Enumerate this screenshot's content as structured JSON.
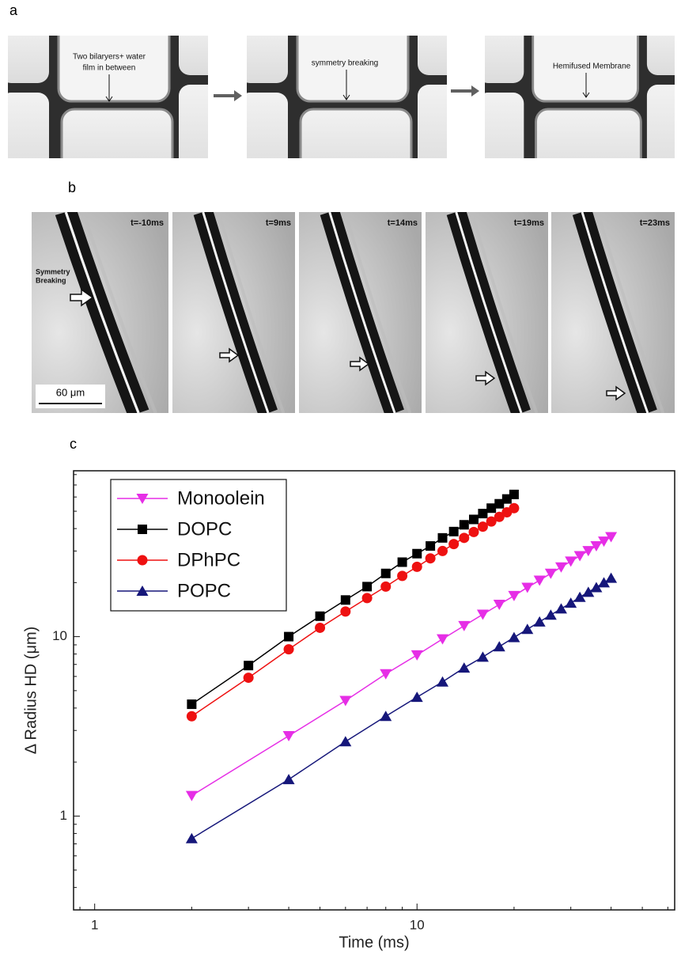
{
  "panels": {
    "a": {
      "label": "a",
      "annotations": [
        {
          "lines": [
            "Two bilaryers+ water",
            "film in between"
          ]
        },
        {
          "lines": [
            "symmetry breaking"
          ]
        },
        {
          "lines": [
            "Hemifused Membrane"
          ]
        }
      ]
    },
    "b": {
      "label": "b",
      "times": [
        "t=-10ms",
        "t=9ms",
        "t=14ms",
        "t=19ms",
        "t=23ms"
      ],
      "annotation": [
        "Symmetry",
        "Breaking"
      ],
      "scale_bar": "60 μm"
    },
    "c": {
      "label": "c"
    }
  },
  "chart_data": {
    "type": "line",
    "x_label": "Time (ms)",
    "y_label": "Δ Radius HD (μm)",
    "xlog": true,
    "ylog": true,
    "xlim": [
      0.86,
      63
    ],
    "ylim": [
      0.3,
      84
    ],
    "xticks": [
      1,
      10
    ],
    "yticks": [
      1,
      10
    ],
    "legend": "upper left",
    "series": [
      {
        "name": "Monoolein",
        "color": "#e62ee6",
        "marker": "triangle-down",
        "x": [
          2,
          4,
          6,
          8,
          10,
          12,
          14,
          16,
          18,
          20,
          22,
          24,
          26,
          28,
          30,
          32,
          34,
          36,
          38,
          40
        ],
        "values": [
          1.3,
          2.8,
          4.4,
          6.2,
          7.9,
          9.7,
          11.5,
          13.3,
          15.1,
          16.9,
          18.8,
          20.6,
          22.5,
          24.4,
          26.3,
          28.2,
          30.1,
          32,
          34,
          36
        ]
      },
      {
        "name": "DOPC",
        "color": "#000000",
        "marker": "square",
        "x": [
          2,
          3,
          4,
          5,
          6,
          7,
          8,
          9,
          10,
          11,
          12,
          13,
          14,
          15,
          16,
          17,
          18,
          19,
          20
        ],
        "values": [
          4.2,
          6.9,
          10,
          13,
          16,
          19,
          22.5,
          26,
          29,
          32,
          35.5,
          38.5,
          42,
          45,
          48.5,
          52,
          55,
          58.5,
          62
        ]
      },
      {
        "name": "DPhPC",
        "color": "#ee1111",
        "marker": "circle",
        "x": [
          2,
          3,
          4,
          5,
          6,
          7,
          8,
          9,
          10,
          11,
          12,
          13,
          14,
          15,
          16,
          17,
          18,
          19,
          20
        ],
        "values": [
          3.6,
          5.9,
          8.5,
          11.2,
          13.8,
          16.4,
          19,
          21.8,
          24.5,
          27.3,
          30,
          32.8,
          35.5,
          38.3,
          41,
          43.8,
          46.5,
          49.3,
          52
        ]
      },
      {
        "name": "POPC",
        "color": "#16177a",
        "marker": "triangle-up",
        "x": [
          2,
          4,
          6,
          8,
          10,
          12,
          14,
          16,
          18,
          20,
          22,
          24,
          26,
          28,
          30,
          32,
          34,
          36,
          38,
          40
        ],
        "values": [
          0.75,
          1.6,
          2.6,
          3.6,
          4.6,
          5.6,
          6.7,
          7.7,
          8.8,
          9.9,
          11,
          12.1,
          13.2,
          14.3,
          15.4,
          16.6,
          17.7,
          18.8,
          20,
          21.2
        ]
      }
    ]
  }
}
